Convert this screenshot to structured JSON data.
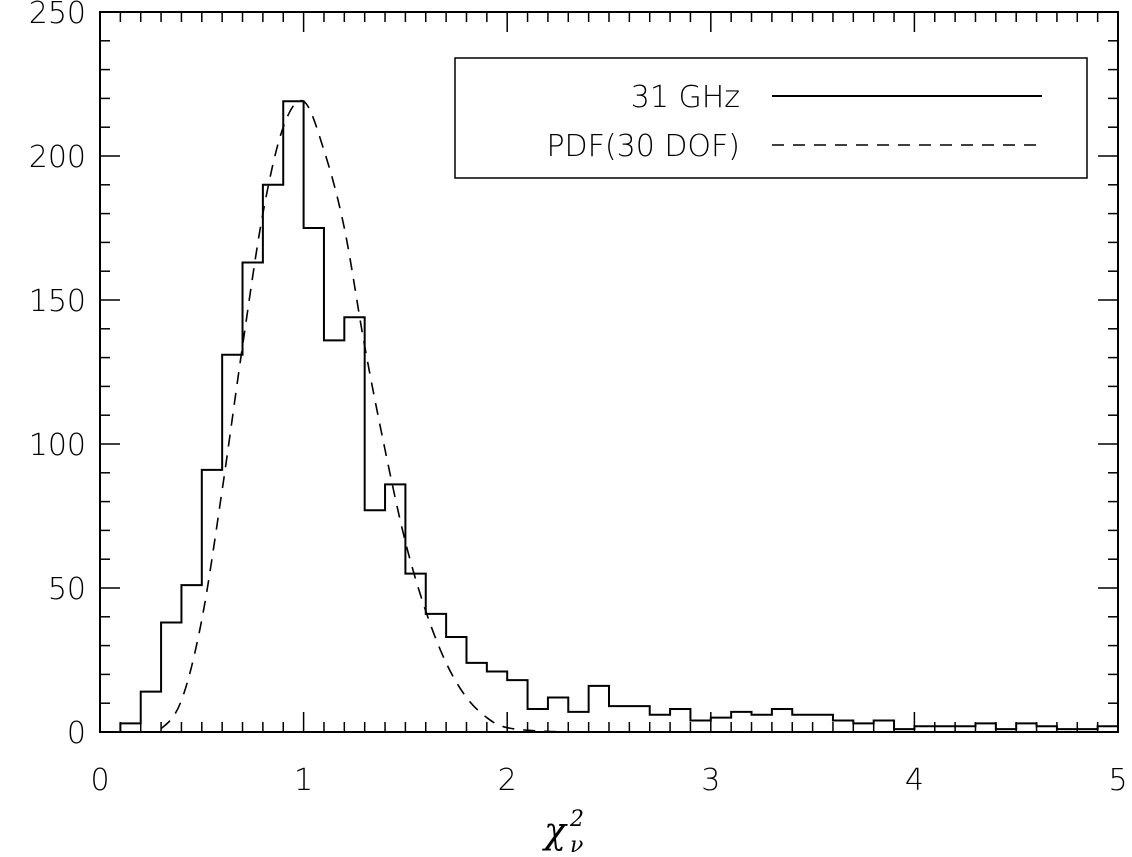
{
  "chart_data": {
    "type": "histogram",
    "xlabel": "χ",
    "xlabel_superscript": "2",
    "xlabel_subscript": "ν",
    "ylabel": "",
    "xlim": [
      0,
      5
    ],
    "ylim": [
      0,
      250
    ],
    "grid": false,
    "legend_position": "top-right",
    "x_ticks": [
      0,
      1,
      2,
      3,
      4,
      5
    ],
    "y_ticks": [
      0,
      50,
      100,
      150,
      200,
      250
    ],
    "x_tick_labels": [
      "0",
      "1",
      "2",
      "3",
      "4",
      "5"
    ],
    "y_tick_labels": [
      "0",
      "50",
      "100",
      "150",
      "200",
      "250"
    ],
    "series": [
      {
        "name": "31 GHz",
        "style": "solid-step",
        "bin_width": 0.1,
        "bin_starts": [
          0.0,
          0.1,
          0.2,
          0.3,
          0.4,
          0.5,
          0.6,
          0.7,
          0.8,
          0.9,
          1.0,
          1.1,
          1.2,
          1.3,
          1.4,
          1.5,
          1.6,
          1.7,
          1.8,
          1.9,
          2.0,
          2.1,
          2.2,
          2.3,
          2.4,
          2.5,
          2.6,
          2.7,
          2.8,
          2.9,
          3.0,
          3.1,
          3.2,
          3.3,
          3.4,
          3.5,
          3.6,
          3.7,
          3.8,
          3.9,
          4.0,
          4.1,
          4.2,
          4.3,
          4.4,
          4.5,
          4.6,
          4.7,
          4.8,
          4.9
        ],
        "values": [
          0,
          3,
          14,
          38,
          51,
          91,
          131,
          163,
          190,
          219,
          175,
          136,
          144,
          77,
          86,
          55,
          41,
          33,
          24,
          21,
          18,
          8,
          12,
          7,
          16,
          9,
          9,
          6,
          8,
          4,
          5,
          7,
          6,
          8,
          6,
          6,
          4,
          3,
          4,
          1,
          2,
          2,
          2,
          3,
          1,
          3,
          2,
          1,
          1,
          2
        ]
      },
      {
        "name": "PDF(30 DOF)",
        "style": "dashed",
        "dof": 30,
        "x": [
          0.2,
          0.3,
          0.4,
          0.5,
          0.6,
          0.7,
          0.8,
          0.9,
          1.0,
          1.1,
          1.2,
          1.3,
          1.4,
          1.5,
          1.6,
          1.7,
          1.8,
          1.9,
          2.0,
          2.2,
          2.4
        ],
        "values": [
          0.0,
          1.2,
          11,
          39,
          84,
          134,
          180,
          210,
          219,
          202,
          175,
          134,
          98,
          66,
          42,
          24,
          12,
          5,
          1.5,
          0.2,
          0.0
        ]
      }
    ]
  },
  "legend": [
    {
      "label": "31 GHz"
    },
    {
      "label": "PDF(30 DOF)"
    }
  ]
}
